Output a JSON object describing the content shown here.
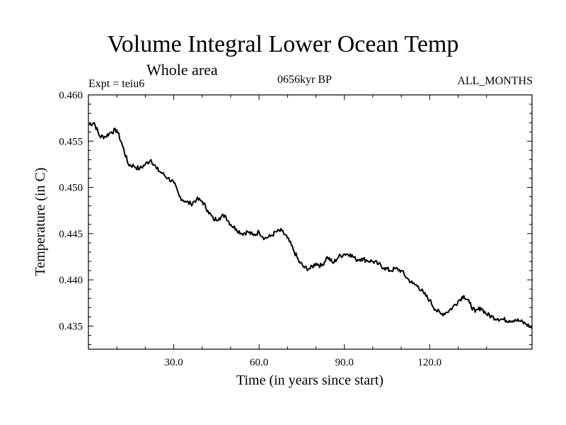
{
  "header": {
    "title": "Volume Integral Lower Ocean Temp",
    "subtitle": "Whole area",
    "expt": "Expt = teiu6",
    "period": "0656kyr BP",
    "months": "ALL_MONTHS"
  },
  "chart_data": {
    "type": "line",
    "title": "Volume Integral Lower Ocean Temp",
    "subtitle": "Whole area",
    "xlabel": "Time (in years since start)",
    "ylabel": "Temperature (in C)",
    "xlim": [
      0,
      156
    ],
    "ylim": [
      0.4325,
      0.46
    ],
    "xticks": [
      30,
      60,
      90,
      120
    ],
    "xtick_labels": [
      "30.0",
      "60.0",
      "90.0",
      "120.0"
    ],
    "yticks": [
      0.435,
      0.44,
      0.445,
      0.45,
      0.455,
      0.46
    ],
    "ytick_labels": [
      "0.435",
      "0.440",
      "0.445",
      "0.450",
      "0.455",
      "0.460"
    ],
    "grid": false,
    "series": [
      {
        "name": "Volume Integral Lower Ocean Temp",
        "color": "#000000",
        "x": [
          0,
          2,
          4,
          6,
          8,
          10,
          12,
          14,
          16,
          18,
          20,
          22,
          24,
          26,
          28,
          30,
          32,
          34,
          36,
          38,
          40,
          42,
          44,
          46,
          48,
          50,
          52,
          54,
          56,
          58,
          60,
          62,
          64,
          66,
          68,
          70,
          72,
          74,
          76,
          78,
          80,
          82,
          84,
          86,
          88,
          90,
          92,
          94,
          96,
          98,
          100,
          102,
          104,
          106,
          108,
          110,
          112,
          114,
          116,
          118,
          120,
          122,
          124,
          126,
          128,
          130,
          132,
          134,
          136,
          138,
          140,
          142,
          144,
          146,
          148,
          150,
          152,
          154,
          156
        ],
        "values": [
          0.4568,
          0.457,
          0.4555,
          0.4555,
          0.456,
          0.4562,
          0.4545,
          0.4525,
          0.4523,
          0.452,
          0.4525,
          0.453,
          0.452,
          0.4515,
          0.451,
          0.4505,
          0.449,
          0.4485,
          0.4482,
          0.4487,
          0.4485,
          0.4475,
          0.4465,
          0.4467,
          0.447,
          0.446,
          0.4455,
          0.445,
          0.4452,
          0.4448,
          0.4452,
          0.4445,
          0.4447,
          0.4452,
          0.4453,
          0.4445,
          0.4433,
          0.442,
          0.4413,
          0.4412,
          0.4418,
          0.4415,
          0.4425,
          0.4418,
          0.4425,
          0.4428,
          0.4428,
          0.4422,
          0.4423,
          0.4421,
          0.442,
          0.4417,
          0.4413,
          0.441,
          0.4412,
          0.441,
          0.4402,
          0.4396,
          0.4393,
          0.4385,
          0.4378,
          0.4368,
          0.4363,
          0.4365,
          0.437,
          0.4377,
          0.4383,
          0.4375,
          0.4365,
          0.437,
          0.4363,
          0.436,
          0.4358,
          0.4357,
          0.4356,
          0.4357,
          0.4355,
          0.4352,
          0.4348
        ]
      }
    ]
  }
}
